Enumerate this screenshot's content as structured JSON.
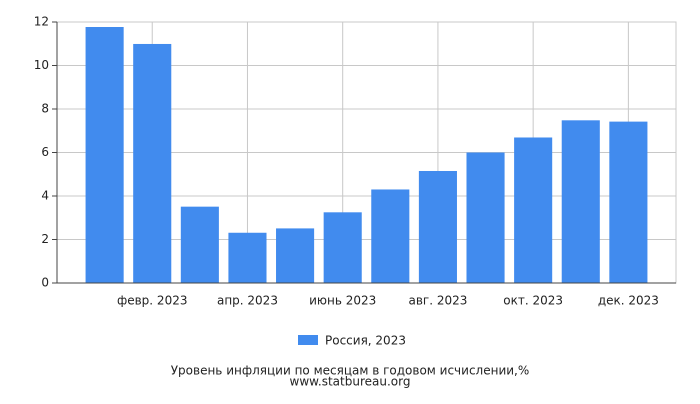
{
  "chart_data": {
    "type": "bar",
    "title": "Уровень инфляции по месяцам в годовом исчислении,%",
    "source": "www.statbureau.org",
    "categories": [
      null,
      "февр. 2023",
      null,
      "апр. 2023",
      null,
      "июнь 2023",
      null,
      "авг. 2023",
      null,
      "окт. 2023",
      null,
      "дек. 2023"
    ],
    "series": [
      {
        "name": "Россия, 2023",
        "color": "#418bee",
        "values": [
          11.77,
          10.99,
          3.51,
          2.31,
          2.51,
          3.25,
          4.3,
          5.15,
          6.0,
          6.69,
          7.48,
          7.42
        ]
      }
    ],
    "ylim": [
      0,
      12
    ],
    "yticks": [
      0,
      2,
      4,
      6,
      8,
      10,
      12
    ],
    "grid": true
  }
}
